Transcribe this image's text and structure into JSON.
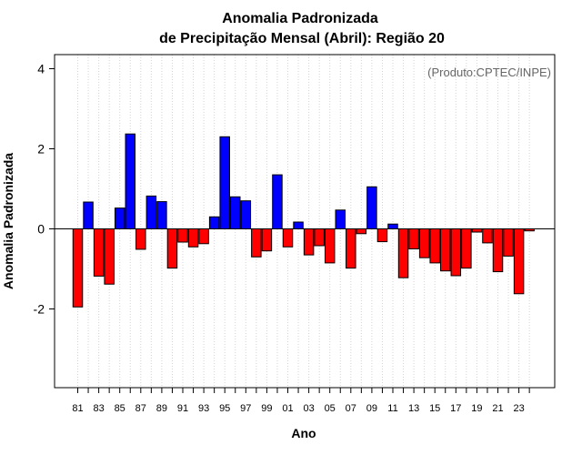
{
  "chart_data": {
    "type": "bar",
    "title": "Anomalia Padronizada",
    "subtitle": "de Precipitação Mensal (Abril): Região 20",
    "xlabel": "Ano",
    "ylabel": "Anomalia Padronizada",
    "annotation": "(Produto:CPTEC/INPE)",
    "ylim": [
      -4,
      4.4
    ],
    "yticks": [
      "-2",
      "0",
      "2",
      "4"
    ],
    "ytick_values": [
      -2,
      0,
      2,
      4
    ],
    "categories": [
      "81",
      "82",
      "83",
      "84",
      "85",
      "86",
      "87",
      "88",
      "89",
      "90",
      "91",
      "92",
      "93",
      "94",
      "95",
      "96",
      "97",
      "98",
      "99",
      "00",
      "01",
      "02",
      "03",
      "04",
      "05",
      "06",
      "07",
      "08",
      "09",
      "10",
      "11",
      "12",
      "13",
      "14",
      "15",
      "16",
      "17",
      "18",
      "19",
      "20",
      "21",
      "22",
      "23",
      "24"
    ],
    "xtick_labels": [
      "81",
      "83",
      "85",
      "87",
      "89",
      "91",
      "93",
      "95",
      "97",
      "99",
      "01",
      "03",
      "05",
      "07",
      "09",
      "11",
      "13",
      "15",
      "17",
      "19",
      "21",
      "23"
    ],
    "values": [
      -1.95,
      0.67,
      -1.18,
      -1.38,
      0.52,
      2.37,
      -0.51,
      0.82,
      0.68,
      -0.98,
      -0.33,
      -0.45,
      -0.37,
      0.3,
      2.3,
      0.8,
      0.7,
      -0.7,
      -0.55,
      1.35,
      -0.45,
      0.17,
      -0.65,
      -0.42,
      -0.85,
      0.47,
      -0.98,
      -0.12,
      1.05,
      -0.32,
      0.12,
      -1.22,
      -0.5,
      -0.72,
      -0.85,
      -1.05,
      -1.17,
      -0.98,
      -0.08,
      -0.35,
      -1.07,
      -0.68,
      -1.62,
      -0.05
    ],
    "positive_color": "#0000ff",
    "negative_color": "#ff0000",
    "grid": true
  }
}
